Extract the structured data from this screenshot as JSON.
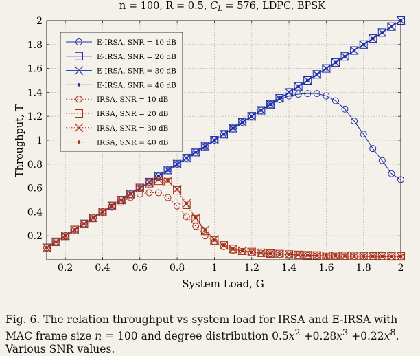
{
  "colors": {
    "eirsa": "#1f2fa8",
    "irsa": "#a5301a",
    "grid": "#b9b9b9",
    "background": "#f4f1ea"
  },
  "chart_data": {
    "type": "line",
    "title": "n = 100, R = 0.5, C_L = 576, LDPC, BPSK",
    "xlabel": "System Load, G",
    "ylabel": "Throughput, T",
    "xlim": [
      0.1,
      2.0
    ],
    "ylim": [
      0.0,
      2.0
    ],
    "xticks": [
      "0.2",
      "0.4",
      "0.6",
      "0.8",
      "1",
      "1.2",
      "1.4",
      "1.6",
      "1.8",
      "2"
    ],
    "yticks": [
      "0.2",
      "0.4",
      "0.6",
      "0.8",
      "1",
      "1.2",
      "1.4",
      "1.6",
      "1.8",
      "2"
    ],
    "grid": true,
    "legend_position": "top-left",
    "x": [
      0.1,
      0.15,
      0.2,
      0.25,
      0.3,
      0.35,
      0.4,
      0.45,
      0.5,
      0.55,
      0.6,
      0.65,
      0.7,
      0.75,
      0.8,
      0.85,
      0.9,
      0.95,
      1.0,
      1.05,
      1.1,
      1.15,
      1.2,
      1.25,
      1.3,
      1.35,
      1.4,
      1.45,
      1.5,
      1.55,
      1.6,
      1.65,
      1.7,
      1.75,
      1.8,
      1.85,
      1.9,
      1.95,
      2.0
    ],
    "series": [
      {
        "name": "E-IRSA, SNR = 10 dB",
        "family": "eirsa",
        "marker": "circle",
        "values": [
          0.1,
          0.15,
          0.2,
          0.25,
          0.3,
          0.35,
          0.4,
          0.45,
          0.5,
          0.55,
          0.6,
          0.65,
          0.7,
          0.75,
          0.8,
          0.85,
          0.9,
          0.95,
          1.0,
          1.05,
          1.1,
          1.15,
          1.2,
          1.25,
          1.3,
          1.34,
          1.37,
          1.385,
          1.39,
          1.39,
          1.37,
          1.33,
          1.26,
          1.16,
          1.05,
          0.93,
          0.83,
          0.72,
          0.67
        ]
      },
      {
        "name": "E-IRSA, SNR = 20 dB",
        "family": "eirsa",
        "marker": "square",
        "values": [
          0.1,
          0.15,
          0.2,
          0.25,
          0.3,
          0.35,
          0.4,
          0.45,
          0.5,
          0.55,
          0.6,
          0.65,
          0.7,
          0.75,
          0.8,
          0.85,
          0.9,
          0.95,
          1.0,
          1.05,
          1.1,
          1.15,
          1.2,
          1.25,
          1.3,
          1.35,
          1.4,
          1.45,
          1.5,
          1.55,
          1.6,
          1.65,
          1.7,
          1.75,
          1.8,
          1.85,
          1.9,
          1.95,
          2.0
        ]
      },
      {
        "name": "E-IRSA, SNR = 30 dB",
        "family": "eirsa",
        "marker": "cross",
        "values": [
          0.1,
          0.15,
          0.2,
          0.25,
          0.3,
          0.35,
          0.4,
          0.45,
          0.5,
          0.55,
          0.6,
          0.65,
          0.7,
          0.75,
          0.8,
          0.85,
          0.9,
          0.95,
          1.0,
          1.05,
          1.1,
          1.15,
          1.2,
          1.25,
          1.3,
          1.35,
          1.4,
          1.45,
          1.5,
          1.55,
          1.6,
          1.65,
          1.7,
          1.75,
          1.8,
          1.85,
          1.9,
          1.95,
          2.0
        ]
      },
      {
        "name": "E-IRSA, SNR = 40 dB",
        "family": "eirsa",
        "marker": "dot",
        "values": [
          0.1,
          0.15,
          0.2,
          0.25,
          0.3,
          0.35,
          0.4,
          0.45,
          0.5,
          0.55,
          0.6,
          0.65,
          0.7,
          0.75,
          0.8,
          0.85,
          0.9,
          0.95,
          1.0,
          1.05,
          1.1,
          1.15,
          1.2,
          1.25,
          1.3,
          1.35,
          1.4,
          1.45,
          1.5,
          1.55,
          1.6,
          1.65,
          1.7,
          1.75,
          1.8,
          1.85,
          1.9,
          1.95,
          2.0
        ]
      },
      {
        "name": "IRSA, SNR = 10 dB",
        "family": "irsa",
        "marker": "circle",
        "values": [
          0.1,
          0.15,
          0.2,
          0.25,
          0.3,
          0.35,
          0.4,
          0.44,
          0.48,
          0.52,
          0.55,
          0.56,
          0.56,
          0.52,
          0.45,
          0.36,
          0.28,
          0.2,
          0.15,
          0.11,
          0.08,
          0.07,
          0.06,
          0.055,
          0.05,
          0.045,
          0.04,
          0.038,
          0.035,
          0.033,
          0.03,
          0.03,
          0.028,
          0.028,
          0.027,
          0.027,
          0.026,
          0.026,
          0.025
        ]
      },
      {
        "name": "IRSA, SNR = 20 dB",
        "family": "irsa",
        "marker": "square",
        "values": [
          0.1,
          0.15,
          0.2,
          0.25,
          0.3,
          0.35,
          0.4,
          0.45,
          0.5,
          0.55,
          0.6,
          0.64,
          0.66,
          0.65,
          0.58,
          0.46,
          0.34,
          0.24,
          0.16,
          0.12,
          0.09,
          0.075,
          0.065,
          0.058,
          0.052,
          0.048,
          0.044,
          0.041,
          0.038,
          0.036,
          0.034,
          0.033,
          0.032,
          0.031,
          0.03,
          0.029,
          0.029,
          0.028,
          0.028
        ]
      },
      {
        "name": "IRSA, SNR = 30 dB",
        "family": "irsa",
        "marker": "cross",
        "values": [
          0.1,
          0.15,
          0.2,
          0.25,
          0.3,
          0.35,
          0.4,
          0.45,
          0.5,
          0.55,
          0.6,
          0.645,
          0.67,
          0.66,
          0.59,
          0.47,
          0.35,
          0.25,
          0.17,
          0.12,
          0.09,
          0.075,
          0.065,
          0.058,
          0.052,
          0.048,
          0.044,
          0.041,
          0.038,
          0.036,
          0.034,
          0.033,
          0.032,
          0.031,
          0.03,
          0.029,
          0.029,
          0.028,
          0.028
        ]
      },
      {
        "name": "IRSA, SNR = 40 dB",
        "family": "irsa",
        "marker": "dot",
        "values": [
          0.1,
          0.15,
          0.2,
          0.25,
          0.3,
          0.35,
          0.4,
          0.45,
          0.5,
          0.55,
          0.6,
          0.645,
          0.67,
          0.66,
          0.59,
          0.47,
          0.35,
          0.25,
          0.17,
          0.12,
          0.09,
          0.075,
          0.065,
          0.058,
          0.052,
          0.048,
          0.044,
          0.041,
          0.038,
          0.036,
          0.034,
          0.033,
          0.032,
          0.031,
          0.03,
          0.029,
          0.029,
          0.028,
          0.028
        ]
      }
    ]
  },
  "caption": {
    "fig_label": "Fig. 6.",
    "text_1": "The relation throughput vs system load for IRSA and E-IRSA with MAC frame size",
    "math_1": "n",
    "text_2": "= 100 and degree distribution 0.5",
    "text_3": "+0.28",
    "text_4": "+0.22",
    "text_5": ". Various SNR values."
  }
}
